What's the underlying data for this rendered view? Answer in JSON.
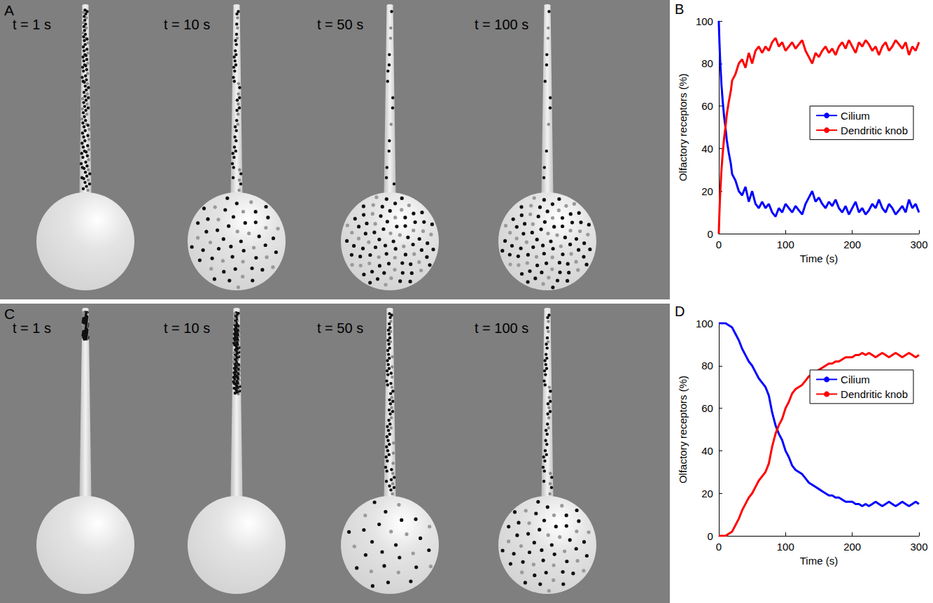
{
  "chart_data": [
    {
      "type": "line",
      "panel": "B",
      "xlabel": "Time (s)",
      "ylabel": "Olfactory receptors (%)",
      "xlim": [
        0,
        300
      ],
      "xticks": [
        0,
        100,
        200,
        300
      ],
      "ylim": [
        0,
        100
      ],
      "yticks": [
        0,
        20,
        40,
        60,
        80,
        100
      ],
      "grid": false,
      "legend": "right",
      "x": [
        0,
        1,
        2,
        3,
        4,
        5,
        6,
        8,
        10,
        12,
        15,
        18,
        20,
        25,
        30,
        35,
        40,
        45,
        50,
        55,
        60,
        65,
        70,
        75,
        80,
        85,
        90,
        95,
        100,
        105,
        110,
        115,
        120,
        125,
        130,
        135,
        140,
        145,
        150,
        155,
        160,
        165,
        170,
        175,
        180,
        185,
        190,
        195,
        200,
        205,
        210,
        215,
        220,
        225,
        230,
        235,
        240,
        245,
        250,
        255,
        260,
        265,
        270,
        275,
        280,
        285,
        290,
        295,
        300
      ],
      "series": [
        {
          "name": "Cilium",
          "color": "#0000ff",
          "values": [
            100,
            90,
            82,
            76,
            70,
            66,
            62,
            55,
            50,
            44,
            38,
            33,
            28,
            25,
            20,
            18,
            22,
            15,
            20,
            14,
            12,
            15,
            12,
            14,
            10,
            8,
            12,
            10,
            14,
            12,
            10,
            13,
            11,
            9,
            14,
            17,
            20,
            15,
            17,
            14,
            12,
            15,
            13,
            16,
            12,
            10,
            13,
            9,
            12,
            15,
            10,
            12,
            9,
            11,
            14,
            12,
            16,
            12,
            10,
            14,
            12,
            9,
            11,
            13,
            10,
            16,
            12,
            14,
            10
          ]
        },
        {
          "name": "Dendritic knob",
          "color": "#ff0000",
          "values": [
            0,
            10,
            18,
            24,
            30,
            34,
            38,
            45,
            50,
            56,
            62,
            67,
            72,
            75,
            80,
            82,
            78,
            85,
            80,
            86,
            88,
            85,
            88,
            86,
            90,
            92,
            88,
            90,
            86,
            88,
            90,
            87,
            89,
            91,
            86,
            83,
            80,
            85,
            83,
            86,
            88,
            85,
            87,
            84,
            88,
            90,
            87,
            91,
            88,
            85,
            90,
            88,
            91,
            89,
            86,
            88,
            84,
            88,
            90,
            86,
            88,
            91,
            89,
            87,
            90,
            84,
            88,
            86,
            90
          ]
        }
      ]
    },
    {
      "type": "line",
      "panel": "D",
      "xlabel": "Time (s)",
      "ylabel": "Olfactory receptors (%)",
      "xlim": [
        0,
        300
      ],
      "xticks": [
        0,
        100,
        200,
        300
      ],
      "ylim": [
        0,
        100
      ],
      "yticks": [
        0,
        20,
        40,
        60,
        80,
        100
      ],
      "grid": false,
      "legend": "upper right",
      "x": [
        0,
        5,
        10,
        15,
        20,
        25,
        30,
        35,
        40,
        45,
        50,
        55,
        60,
        65,
        70,
        75,
        80,
        85,
        90,
        95,
        100,
        105,
        110,
        115,
        120,
        125,
        130,
        135,
        140,
        145,
        150,
        155,
        160,
        165,
        170,
        175,
        180,
        185,
        190,
        195,
        200,
        205,
        210,
        215,
        220,
        225,
        230,
        235,
        240,
        245,
        250,
        255,
        260,
        265,
        270,
        275,
        280,
        285,
        290,
        295,
        300
      ],
      "series": [
        {
          "name": "Cilium",
          "color": "#0000ff",
          "values": [
            100,
            100,
            100,
            99,
            98,
            95,
            92,
            88,
            85,
            82,
            80,
            77,
            74,
            72,
            70,
            66,
            58,
            52,
            48,
            45,
            40,
            37,
            33,
            31,
            30,
            29,
            27,
            25,
            24,
            23,
            22,
            21,
            20,
            19,
            19,
            18,
            18,
            17,
            16,
            16,
            16,
            15,
            15,
            14,
            15,
            14,
            15,
            16,
            15,
            14,
            15,
            16,
            15,
            14,
            15,
            16,
            15,
            14,
            15,
            16,
            15
          ]
        },
        {
          "name": "Dendritic knob",
          "color": "#ff0000",
          "values": [
            0,
            0,
            0,
            1,
            2,
            5,
            8,
            12,
            15,
            18,
            20,
            23,
            26,
            28,
            30,
            34,
            42,
            48,
            52,
            55,
            60,
            63,
            67,
            69,
            70,
            71,
            73,
            75,
            76,
            77,
            78,
            79,
            80,
            81,
            81,
            82,
            82,
            83,
            84,
            84,
            84,
            85,
            85,
            86,
            85,
            86,
            85,
            84,
            85,
            86,
            85,
            84,
            85,
            86,
            85,
            84,
            85,
            86,
            85,
            84,
            85
          ]
        }
      ]
    }
  ],
  "images": [
    {
      "panel": "A",
      "frames": [
        {
          "label": "t = 1 s",
          "cilium_dots": 100,
          "knob_dots": 0,
          "cilium_spread": 1
        },
        {
          "label": "t = 10 s",
          "cilium_dots": 45,
          "knob_dots": 55,
          "cilium_spread": 1
        },
        {
          "label": "t = 50 s",
          "cilium_dots": 15,
          "knob_dots": 85,
          "cilium_spread": 1
        },
        {
          "label": "t = 100 s",
          "cilium_dots": 12,
          "knob_dots": 88,
          "cilium_spread": 1
        }
      ]
    },
    {
      "panel": "C",
      "frames": [
        {
          "label": "t = 1 s",
          "cilium_dots": 100,
          "knob_dots": 0,
          "cilium_spread": 0.15
        },
        {
          "label": "t = 10 s",
          "cilium_dots": 100,
          "knob_dots": 0,
          "cilium_spread": 0.45
        },
        {
          "label": "t = 50 s",
          "cilium_dots": 70,
          "knob_dots": 30,
          "cilium_spread": 1
        },
        {
          "label": "t = 100 s",
          "cilium_dots": 45,
          "knob_dots": 55,
          "cilium_spread": 1
        }
      ]
    }
  ]
}
